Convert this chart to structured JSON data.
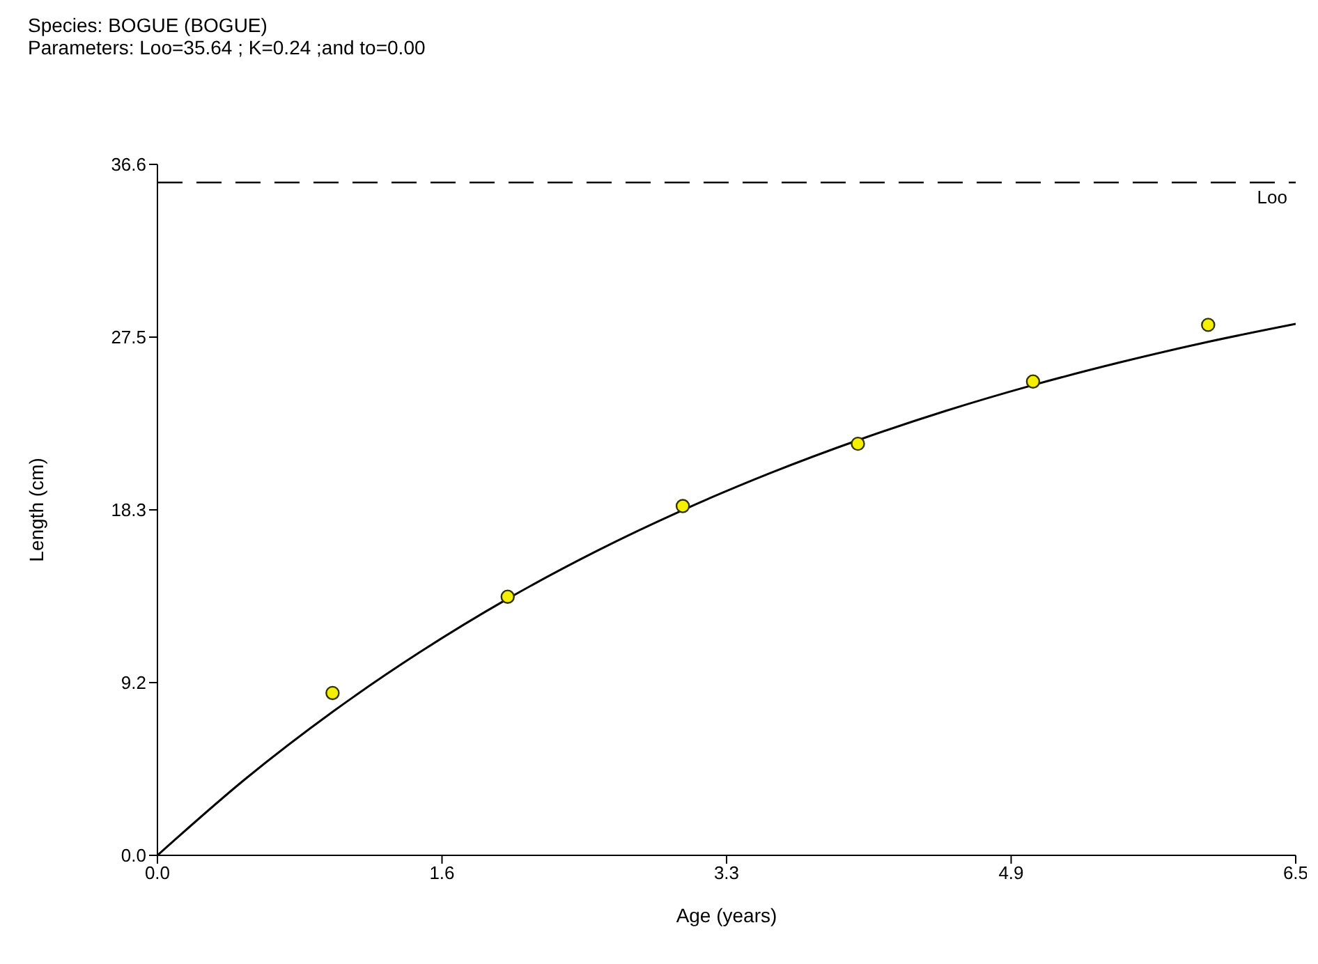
{
  "chart_data": {
    "type": "scatter",
    "title": "Species: BOGUE (BOGUE)",
    "subtitle": "Parameters: Loo=35.64 ; K=0.24 ;and to=0.00",
    "xlabel": "Age (years)",
    "ylabel": "Length (cm)",
    "series": [
      {
        "color": "#f5f000",
        "x": [
          1,
          2,
          3,
          4,
          5,
          6
        ],
        "values": [
          8.6,
          13.7,
          18.5,
          21.8,
          25.1,
          28.1
        ],
        "marker": "circle"
      },
      {
        "type": "line",
        "color": "#000000",
        "x": [
          0,
          0.5,
          1,
          1.5,
          2,
          2.5,
          3,
          3.5,
          4,
          4.5,
          5,
          5.5,
          6,
          6.5
        ],
        "values": [
          0,
          4.03,
          7.6,
          10.77,
          13.59,
          16.08,
          18.29,
          20.25,
          21.99,
          23.54,
          24.91,
          26.12,
          27.2,
          28.15
        ],
        "marker": "none"
      }
    ],
    "xlim": [
      0,
      6.5
    ],
    "xticks": [
      {
        "value": 0,
        "label": "0.0"
      },
      {
        "value": 1.625,
        "label": "1.6"
      },
      {
        "value": 3.25,
        "label": "3.3"
      },
      {
        "value": 4.875,
        "label": "4.9"
      },
      {
        "value": 6.5,
        "label": "6.5"
      }
    ],
    "ylim": [
      0,
      36.6
    ],
    "yticks": [
      {
        "value": 0,
        "label": "0.0"
      },
      {
        "value": 9.15,
        "label": "9.2"
      },
      {
        "value": 18.3,
        "label": "18.3"
      },
      {
        "value": 27.45,
        "label": "27.5"
      },
      {
        "value": 36.6,
        "label": "36.6"
      }
    ],
    "ref_lines": [
      {
        "axis": "y",
        "value": 35.64,
        "label": "Loo",
        "color": "#000000",
        "line_style": "dashed"
      }
    ],
    "grid": false
  }
}
